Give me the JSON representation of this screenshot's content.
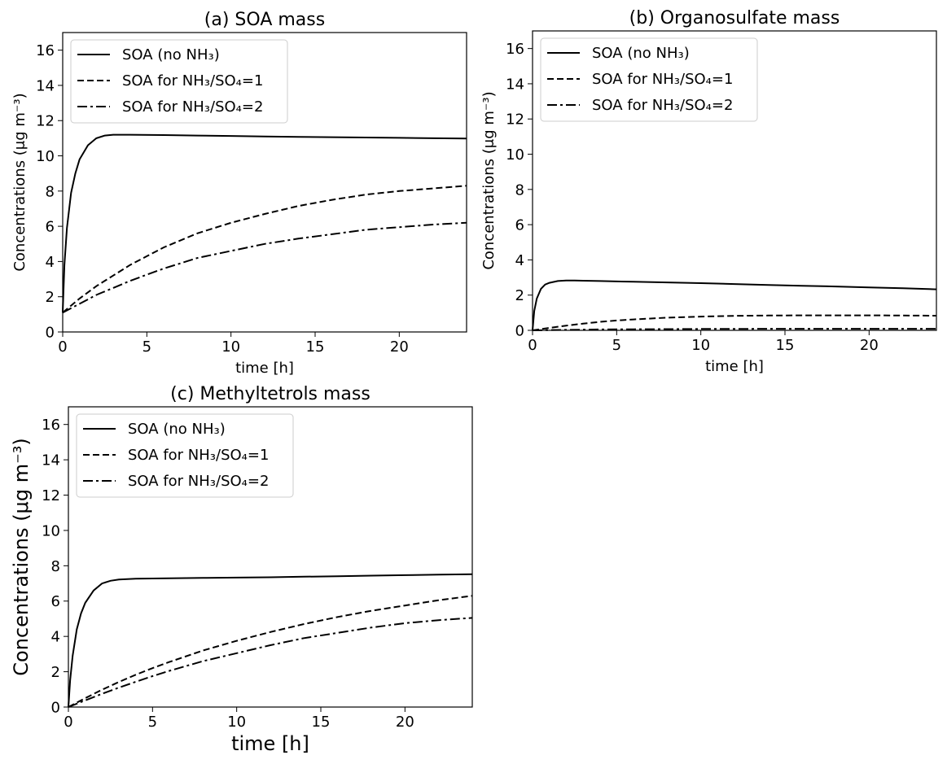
{
  "chart_data": [
    {
      "type": "line",
      "title": "(a) SOA mass",
      "xlabel": "time [h]",
      "ylabel": "Concentrations (μg  m⁻³)",
      "xlim": [
        0,
        24
      ],
      "ylim": [
        0,
        17
      ],
      "xticks": [
        "0",
        "5",
        "10",
        "15",
        "20"
      ],
      "yticks": [
        "0",
        "2",
        "4",
        "6",
        "8",
        "10",
        "12",
        "14",
        "16"
      ],
      "legend_position": "upper-left",
      "series": [
        {
          "name": "SOA (no NH₃)",
          "style": "solid",
          "x": [
            0,
            0.1,
            0.25,
            0.5,
            0.75,
            1,
            1.5,
            2,
            2.5,
            3,
            4,
            6,
            8,
            10,
            12,
            14,
            16,
            18,
            20,
            22,
            24
          ],
          "y": [
            1.1,
            3.8,
            5.9,
            7.9,
            9.0,
            9.8,
            10.6,
            11.0,
            11.15,
            11.2,
            11.2,
            11.18,
            11.15,
            11.13,
            11.1,
            11.08,
            11.06,
            11.04,
            11.02,
            11.0,
            10.98
          ]
        },
        {
          "name": "SOA for NH₃/SO₄=1",
          "style": "dashed",
          "x": [
            0,
            1,
            2,
            3,
            4,
            5,
            6,
            8,
            10,
            12,
            14,
            16,
            18,
            20,
            22,
            24
          ],
          "y": [
            1.1,
            1.9,
            2.6,
            3.2,
            3.8,
            4.3,
            4.8,
            5.6,
            6.2,
            6.7,
            7.15,
            7.5,
            7.8,
            8.0,
            8.15,
            8.3
          ]
        },
        {
          "name": "SOA for NH₃/SO₄=2",
          "style": "dashdot",
          "x": [
            0,
            1,
            2,
            3,
            4,
            5,
            6,
            8,
            10,
            12,
            14,
            16,
            18,
            20,
            22,
            24
          ],
          "y": [
            1.1,
            1.6,
            2.1,
            2.5,
            2.9,
            3.25,
            3.6,
            4.2,
            4.6,
            5.0,
            5.3,
            5.55,
            5.8,
            5.95,
            6.1,
            6.2
          ]
        }
      ]
    },
    {
      "type": "line",
      "title": "(b) Organosulfate mass",
      "xlabel": "time [h]",
      "ylabel": "Concentrations (μg  m⁻³)",
      "xlim": [
        0,
        24
      ],
      "ylim": [
        0,
        17
      ],
      "xticks": [
        "0",
        "5",
        "10",
        "15",
        "20"
      ],
      "yticks": [
        "0",
        "2",
        "4",
        "6",
        "8",
        "10",
        "12",
        "14",
        "16"
      ],
      "legend_position": "upper-left",
      "series": [
        {
          "name": "SOA (no NH₃)",
          "style": "solid",
          "x": [
            0,
            0.1,
            0.25,
            0.5,
            0.75,
            1,
            1.5,
            2,
            2.5,
            3,
            4,
            6,
            8,
            10,
            12,
            14,
            16,
            18,
            20,
            22,
            24
          ],
          "y": [
            0,
            1.1,
            1.8,
            2.35,
            2.6,
            2.7,
            2.8,
            2.83,
            2.83,
            2.82,
            2.8,
            2.76,
            2.72,
            2.68,
            2.63,
            2.58,
            2.53,
            2.49,
            2.44,
            2.39,
            2.33
          ]
        },
        {
          "name": "SOA for NH₃/SO₄=1",
          "style": "dashed",
          "x": [
            0,
            1,
            2,
            3,
            4,
            5,
            6,
            8,
            10,
            12,
            14,
            16,
            18,
            20,
            22,
            24
          ],
          "y": [
            0,
            0.14,
            0.27,
            0.38,
            0.48,
            0.56,
            0.62,
            0.72,
            0.78,
            0.82,
            0.84,
            0.85,
            0.85,
            0.85,
            0.84,
            0.83
          ]
        },
        {
          "name": "SOA for NH₃/SO₄=2",
          "style": "dashdot",
          "x": [
            0,
            2,
            4,
            6,
            8,
            10,
            12,
            14,
            16,
            18,
            20,
            22,
            24
          ],
          "y": [
            0,
            0.03,
            0.05,
            0.06,
            0.07,
            0.08,
            0.08,
            0.09,
            0.09,
            0.09,
            0.09,
            0.09,
            0.09
          ]
        }
      ]
    },
    {
      "type": "line",
      "title": "(c) Methyltetrols mass",
      "xlabel": "time [h]",
      "ylabel": "Concentrations (μg  m⁻³)",
      "xlim": [
        0,
        24
      ],
      "ylim": [
        0,
        17
      ],
      "xticks": [
        "0",
        "5",
        "10",
        "15",
        "20"
      ],
      "yticks": [
        "0",
        "2",
        "4",
        "6",
        "8",
        "10",
        "12",
        "14",
        "16"
      ],
      "legend_position": "upper-left",
      "series": [
        {
          "name": "SOA (no NH₃)",
          "style": "solid",
          "x": [
            0,
            0.1,
            0.25,
            0.5,
            0.75,
            1,
            1.5,
            2,
            2.5,
            3,
            4,
            6,
            8,
            10,
            12,
            14,
            16,
            18,
            20,
            22,
            24
          ],
          "y": [
            0,
            1.5,
            2.9,
            4.4,
            5.3,
            5.9,
            6.6,
            7.0,
            7.15,
            7.22,
            7.27,
            7.29,
            7.31,
            7.33,
            7.35,
            7.38,
            7.41,
            7.44,
            7.47,
            7.5,
            7.52
          ]
        },
        {
          "name": "SOA for NH₃/SO₄=1",
          "style": "dashed",
          "x": [
            0,
            1,
            2,
            3,
            4,
            5,
            6,
            8,
            10,
            12,
            14,
            16,
            18,
            20,
            22,
            24
          ],
          "y": [
            0,
            0.5,
            0.98,
            1.42,
            1.83,
            2.2,
            2.55,
            3.2,
            3.75,
            4.25,
            4.7,
            5.1,
            5.45,
            5.75,
            6.05,
            6.3
          ]
        },
        {
          "name": "SOA for NH₃/SO₄=2",
          "style": "dashdot",
          "x": [
            0,
            1,
            2,
            3,
            4,
            5,
            6,
            8,
            10,
            12,
            14,
            16,
            18,
            20,
            22,
            24
          ],
          "y": [
            0,
            0.38,
            0.75,
            1.1,
            1.43,
            1.75,
            2.05,
            2.6,
            3.05,
            3.5,
            3.9,
            4.2,
            4.5,
            4.75,
            4.92,
            5.05
          ]
        }
      ]
    }
  ]
}
